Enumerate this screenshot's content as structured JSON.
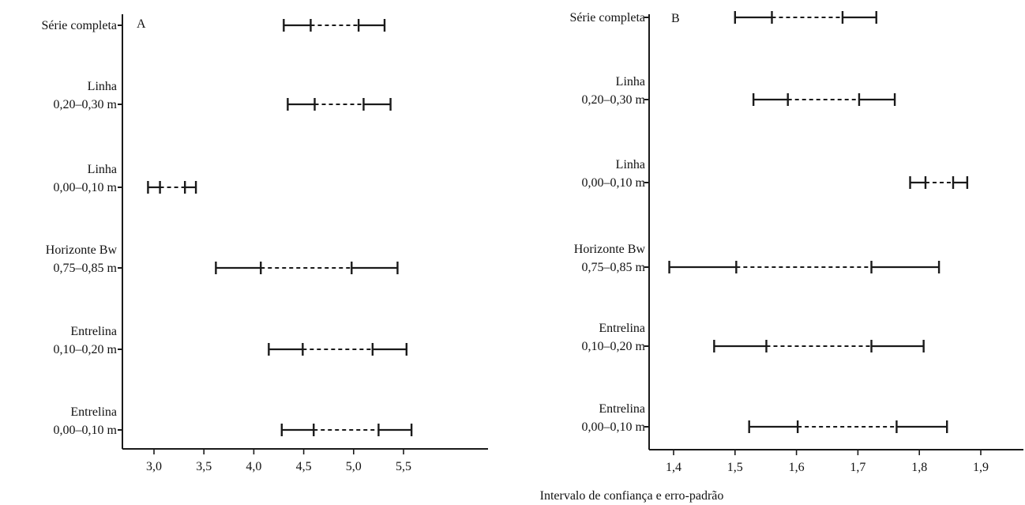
{
  "chart_data": [
    {
      "type": "interval",
      "panel_label": "A",
      "categories": [
        [
          "Série completa"
        ],
        [
          "Linha",
          "0,20–0,30 m"
        ],
        [
          "Linha",
          "0,00–0,10 m"
        ],
        [
          "Horizonte Bw",
          "0,75–0,85 m"
        ],
        [
          "Entrelina",
          "0,10–0,20 m"
        ],
        [
          "Entrelina",
          "0,00–0,10 m"
        ]
      ],
      "intervals": [
        {
          "ci_low": 4.3,
          "se_low": 4.57,
          "se_high": 5.05,
          "ci_high": 5.31
        },
        {
          "ci_low": 4.34,
          "se_low": 4.61,
          "se_high": 5.1,
          "ci_high": 5.37
        },
        {
          "ci_low": 2.94,
          "se_low": 3.06,
          "se_high": 3.31,
          "ci_high": 3.42
        },
        {
          "ci_low": 3.62,
          "se_low": 4.07,
          "se_high": 4.98,
          "ci_high": 5.44
        },
        {
          "ci_low": 4.15,
          "se_low": 4.49,
          "se_high": 5.19,
          "ci_high": 5.53
        },
        {
          "ci_low": 4.28,
          "se_low": 4.6,
          "se_high": 5.25,
          "ci_high": 5.58
        }
      ],
      "xticks": [
        "3,0",
        "3,5",
        "4,0",
        "4,5",
        "5,0",
        "5,5"
      ],
      "xtick_values": [
        3.0,
        3.5,
        4.0,
        4.5,
        5.0,
        5.5
      ],
      "xlim": [
        2.65,
        5.68
      ]
    },
    {
      "type": "interval",
      "panel_label": "B",
      "categories": [
        [
          "Série completa"
        ],
        [
          "Linha",
          "0,20–0,30 m"
        ],
        [
          "Linha",
          "0,00–0,10 m"
        ],
        [
          "Horizonte Bw",
          "0,75–0,85 m"
        ],
        [
          "Entrelina",
          "0,10–0,20 m"
        ],
        [
          "Entrelina",
          "0,00–0,10 m"
        ]
      ],
      "intervals": [
        {
          "ci_low": 1.5,
          "se_low": 1.56,
          "se_high": 1.675,
          "ci_high": 1.73
        },
        {
          "ci_low": 1.53,
          "se_low": 1.586,
          "se_high": 1.702,
          "ci_high": 1.76
        },
        {
          "ci_low": 1.785,
          "se_low": 1.81,
          "se_high": 1.855,
          "ci_high": 1.878
        },
        {
          "ci_low": 1.393,
          "se_low": 1.502,
          "se_high": 1.722,
          "ci_high": 1.832
        },
        {
          "ci_low": 1.466,
          "se_low": 1.551,
          "se_high": 1.722,
          "ci_high": 1.807
        },
        {
          "ci_low": 1.523,
          "se_low": 1.602,
          "se_high": 1.763,
          "ci_high": 1.845
        }
      ],
      "xticks": [
        "1,4",
        "1,5",
        "1,6",
        "1,7",
        "1,8",
        "1,9"
      ],
      "xtick_values": [
        1.4,
        1.5,
        1.6,
        1.7,
        1.8,
        1.9
      ],
      "xlim": [
        1.376,
        1.915
      ]
    }
  ],
  "xlabel": "Intervalo de confiança e erro-padrão"
}
